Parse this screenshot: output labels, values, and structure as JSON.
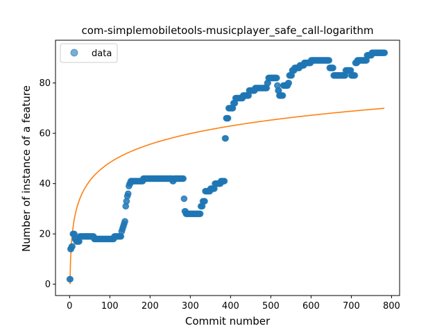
{
  "chart_data": {
    "type": "scatter",
    "title": "com-simplemobiletools-musicplayer_safe_call-logarithm",
    "xlabel": "Commit number",
    "ylabel": "Number of instance of a feature",
    "xlim": [
      -35,
      820
    ],
    "ylim": [
      -4.5,
      97
    ],
    "xticks": [
      0,
      100,
      200,
      300,
      400,
      500,
      600,
      700,
      800
    ],
    "yticks": [
      0,
      20,
      40,
      60,
      80
    ],
    "grid": false,
    "legend_position": "top-left",
    "colors": {
      "data": "#1f77b4",
      "fit": "#ff7f0e"
    },
    "series": [
      {
        "name": "data",
        "kind": "scatter",
        "segments": [
          [
            0,
            2,
            2
          ],
          [
            2,
            4,
            14
          ],
          [
            5,
            7,
            15
          ],
          [
            8,
            12,
            20
          ],
          [
            13,
            16,
            18
          ],
          [
            17,
            24,
            17
          ],
          [
            25,
            60,
            19
          ],
          [
            61,
            110,
            18
          ],
          [
            111,
            128,
            19
          ],
          [
            129,
            130,
            21
          ],
          [
            131,
            132,
            22
          ],
          [
            133,
            134,
            23
          ],
          [
            135,
            136,
            24
          ],
          [
            137,
            138,
            25
          ],
          [
            139,
            140,
            31
          ],
          [
            141,
            142,
            33
          ],
          [
            143,
            144,
            35
          ],
          [
            145,
            146,
            36
          ],
          [
            147,
            148,
            39
          ],
          [
            149,
            151,
            40
          ],
          [
            152,
            182,
            41
          ],
          [
            183,
            255,
            42
          ],
          [
            256,
            258,
            41
          ],
          [
            259,
            283,
            42
          ],
          [
            284,
            285,
            34
          ],
          [
            286,
            288,
            29
          ],
          [
            289,
            325,
            28
          ],
          [
            326,
            330,
            31
          ],
          [
            331,
            336,
            33
          ],
          [
            337,
            349,
            37
          ],
          [
            350,
            360,
            38
          ],
          [
            361,
            375,
            40
          ],
          [
            376,
            385,
            41
          ],
          [
            386,
            388,
            58
          ],
          [
            389,
            394,
            66
          ],
          [
            395,
            406,
            70
          ],
          [
            407,
            411,
            72
          ],
          [
            412,
            430,
            74
          ],
          [
            431,
            445,
            75
          ],
          [
            446,
            460,
            77
          ],
          [
            461,
            490,
            78
          ],
          [
            491,
            493,
            80
          ],
          [
            494,
            515,
            82
          ],
          [
            516,
            517,
            79
          ],
          [
            518,
            520,
            77
          ],
          [
            521,
            530,
            75
          ],
          [
            531,
            542,
            79
          ],
          [
            543,
            545,
            80
          ],
          [
            546,
            552,
            83
          ],
          [
            553,
            558,
            85
          ],
          [
            559,
            571,
            86
          ],
          [
            572,
            582,
            87
          ],
          [
            583,
            599,
            88
          ],
          [
            600,
            645,
            89
          ],
          [
            646,
            655,
            86
          ],
          [
            656,
            685,
            83
          ],
          [
            686,
            699,
            85
          ],
          [
            700,
            709,
            83
          ],
          [
            710,
            714,
            88
          ],
          [
            715,
            738,
            89
          ],
          [
            739,
            750,
            91
          ],
          [
            751,
            783,
            92
          ]
        ]
      },
      {
        "name": "",
        "kind": "line",
        "fit": {
          "a": 10.5,
          "b": 0.0,
          "formula": "a*ln(x)"
        },
        "x_range": [
          1,
          783
        ]
      }
    ]
  },
  "legend": {
    "entries": [
      "data"
    ]
  }
}
